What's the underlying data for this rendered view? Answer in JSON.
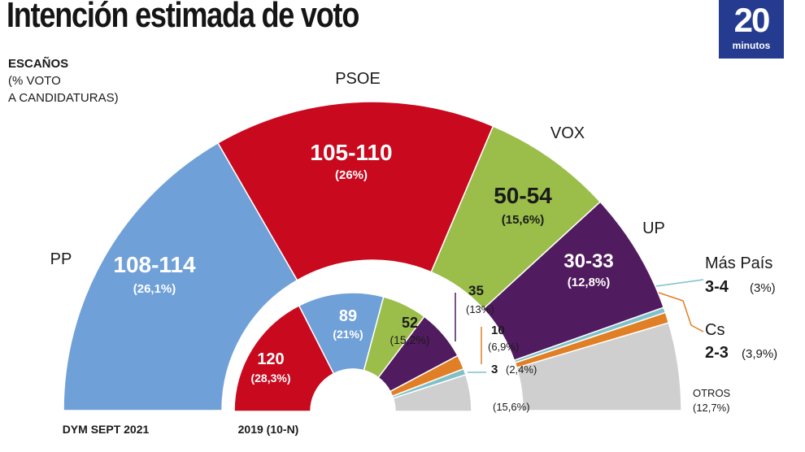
{
  "header": {
    "title": "Intención estimada de voto",
    "logo_number": "20",
    "logo_text": "minutos"
  },
  "legend_key": {
    "line1": "ESCAÑOS",
    "line2": "(% VOTO\nA CANDIDATURAS)"
  },
  "chart_data": [
    {
      "type": "semicircle-parliament",
      "caption": "DYM SEPT 2021",
      "series": [
        {
          "party": "PP",
          "seats": "108-114",
          "vote_pct": "26,1%",
          "color": "#6fa0d8"
        },
        {
          "party": "PSOE",
          "seats": "105-110",
          "vote_pct": "26%",
          "color": "#c8091e"
        },
        {
          "party": "VOX",
          "seats": "50-54",
          "vote_pct": "15,6%",
          "color": "#9bbe4a"
        },
        {
          "party": "UP",
          "seats": "30-33",
          "vote_pct": "12,8%",
          "color": "#511b5f"
        },
        {
          "party": "Más País",
          "seats": "3-4",
          "vote_pct": "3%",
          "color": "#7fc0c9"
        },
        {
          "party": "Cs",
          "seats": "2-3",
          "vote_pct": "3,9%",
          "color": "#e07f25"
        },
        {
          "party": "OTROS",
          "seats": "",
          "vote_pct": "12,7%",
          "color": "#cfcfcf"
        }
      ]
    },
    {
      "type": "semicircle-parliament",
      "caption": "2019 (10-N)",
      "series": [
        {
          "party": "PSOE",
          "seats": "120",
          "vote_pct": "28,3%",
          "color": "#c8091e"
        },
        {
          "party": "PP",
          "seats": "89",
          "vote_pct": "21%",
          "color": "#6fa0d8"
        },
        {
          "party": "VOX",
          "seats": "52",
          "vote_pct": "15,2%",
          "color": "#9bbe4a"
        },
        {
          "party": "UP",
          "seats": "35",
          "vote_pct": "13%",
          "color": "#511b5f"
        },
        {
          "party": "Cs",
          "seats": "10",
          "vote_pct": "6,9%",
          "color": "#e07f25"
        },
        {
          "party": "Más País",
          "seats": "3",
          "vote_pct": "2,4%",
          "color": "#7fc0c9"
        },
        {
          "party": "OTROS",
          "seats": "",
          "vote_pct": "15,6%",
          "color": "#cfcfcf"
        }
      ]
    }
  ]
}
